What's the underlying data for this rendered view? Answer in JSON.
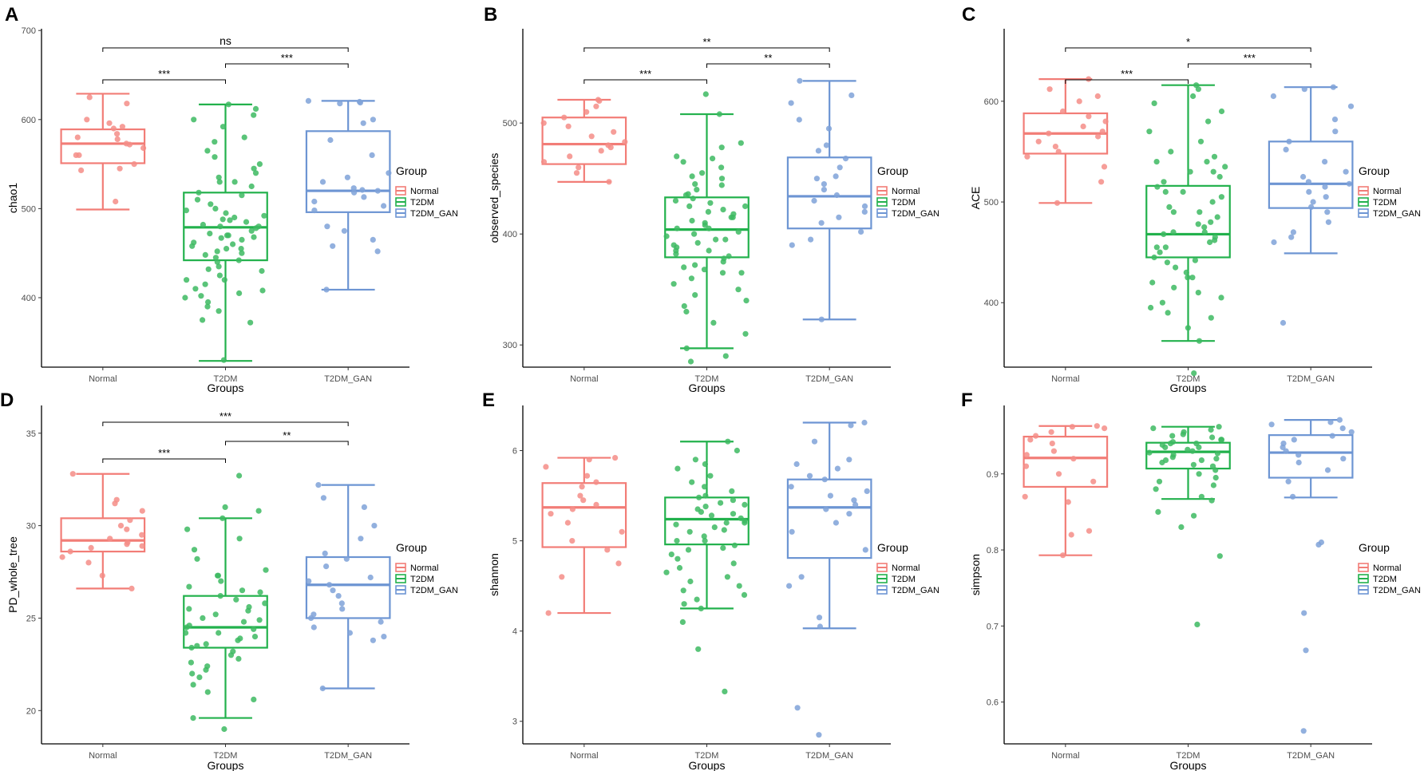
{
  "colors": {
    "Normal": "#F27D77",
    "T2DM": "#22B14C",
    "T2DM_GAN": "#6D95D3"
  },
  "xlabel": "Groups",
  "legend": {
    "title": "Group",
    "items": [
      "Normal",
      "T2DM",
      "T2DM_GAN"
    ]
  },
  "chart_data": [
    {
      "panel": "A",
      "type": "box",
      "ylabel": "chao1",
      "categories": [
        "Normal",
        "T2DM",
        "T2DM_GAN"
      ],
      "ylim": [
        322,
        702
      ],
      "yticks": [
        400,
        500,
        600,
        700
      ],
      "boxes": [
        {
          "group": "Normal",
          "min": 499,
          "q1": 551,
          "median": 573,
          "q3": 589,
          "max": 629
        },
        {
          "group": "T2DM",
          "min": 329,
          "q1": 442,
          "median": 479,
          "q3": 518,
          "max": 617
        },
        {
          "group": "T2DM_GAN",
          "min": 409,
          "q1": 496,
          "median": 520,
          "q3": 587,
          "max": 621
        }
      ],
      "points": [
        [
          508,
          600,
          590,
          568,
          578,
          584,
          560,
          550,
          545,
          572,
          592,
          625,
          618,
          580,
          596,
          543,
          560,
          573
        ],
        [
          612,
          605,
          600,
          592,
          580,
          575,
          565,
          558,
          550,
          540,
          535,
          530,
          525,
          518,
          510,
          505,
          500,
          495,
          492,
          488,
          485,
          482,
          480,
          478,
          475,
          472,
          470,
          468,
          465,
          462,
          460,
          458,
          455,
          452,
          450,
          448,
          445,
          440,
          435,
          430,
          425,
          420,
          415,
          410,
          405,
          400,
          395,
          390,
          385,
          375,
          372,
          330,
          617,
          545,
          530,
          515,
          498,
          487,
          467,
          455,
          442,
          432,
          420,
          408,
          402,
          470,
          480,
          490
        ],
        [
          621,
          620,
          619,
          618,
          600,
          596,
          577,
          560,
          540,
          535,
          530,
          523,
          521,
          520,
          518,
          513,
          508,
          503,
          498,
          480,
          475,
          465,
          458,
          452,
          409
        ]
      ],
      "brackets": [
        {
          "from": 0,
          "to": 2,
          "label": "ns",
          "level": 2
        },
        {
          "from": 0,
          "to": 1,
          "label": "***",
          "level": 0
        },
        {
          "from": 1,
          "to": 2,
          "label": "***",
          "level": 1
        }
      ]
    },
    {
      "panel": "B",
      "type": "box",
      "ylabel": "observed_species",
      "categories": [
        "Normal",
        "T2DM",
        "T2DM_GAN"
      ],
      "ylim": [
        280,
        585
      ],
      "yticks": [
        300,
        400,
        500
      ],
      "boxes": [
        {
          "group": "Normal",
          "min": 447,
          "q1": 463,
          "median": 481,
          "q3": 505,
          "max": 521
        },
        {
          "group": "T2DM",
          "min": 297,
          "q1": 379,
          "median": 404,
          "q3": 433,
          "max": 508
        },
        {
          "group": "T2DM_GAN",
          "min": 323,
          "q1": 405,
          "median": 434,
          "q3": 469,
          "max": 538
        }
      ],
      "points": [
        [
          447,
          455,
          460,
          465,
          470,
          475,
          478,
          480,
          483,
          488,
          492,
          497,
          500,
          505,
          510,
          515,
          520,
          521
        ],
        [
          526,
          508,
          482,
          478,
          470,
          468,
          465,
          460,
          455,
          452,
          450,
          445,
          440,
          435,
          432,
          430,
          428,
          425,
          422,
          420,
          418,
          415,
          412,
          410,
          408,
          405,
          402,
          400,
          398,
          395,
          392,
          390,
          388,
          385,
          382,
          380,
          378,
          375,
          372,
          370,
          368,
          365,
          360,
          355,
          350,
          345,
          340,
          335,
          330,
          320,
          310,
          297,
          290,
          285,
          415,
          425,
          405,
          395,
          385,
          365,
          444,
          436
        ],
        [
          538,
          525,
          518,
          503,
          495,
          480,
          475,
          468,
          460,
          452,
          450,
          445,
          440,
          435,
          430,
          425,
          420,
          415,
          410,
          402,
          395,
          390,
          323
        ]
      ],
      "brackets": [
        {
          "from": 0,
          "to": 2,
          "label": "**",
          "level": 2
        },
        {
          "from": 0,
          "to": 1,
          "label": "***",
          "level": 0
        },
        {
          "from": 1,
          "to": 2,
          "label": "**",
          "level": 1
        }
      ]
    },
    {
      "panel": "C",
      "type": "box",
      "ylabel": "ACE",
      "categories": [
        "Normal",
        "T2DM",
        "T2DM_GAN"
      ],
      "ylim": [
        336,
        672
      ],
      "yticks": [
        400,
        500,
        600
      ],
      "boxes": [
        {
          "group": "Normal",
          "min": 499,
          "q1": 548,
          "median": 568,
          "q3": 588,
          "max": 622
        },
        {
          "group": "T2DM",
          "min": 362,
          "q1": 445,
          "median": 468,
          "q3": 516,
          "max": 616
        },
        {
          "group": "T2DM_GAN",
          "min": 449,
          "q1": 494,
          "median": 518,
          "q3": 560,
          "max": 614
        },
        "..."
      ],
      "points": [
        [
          499,
          520,
          535,
          545,
          550,
          555,
          560,
          565,
          568,
          570,
          575,
          580,
          585,
          590,
          600,
          605,
          612,
          622
        ],
        [
          616,
          612,
          605,
          598,
          590,
          580,
          570,
          560,
          550,
          545,
          540,
          535,
          530,
          525,
          520,
          515,
          510,
          505,
          500,
          495,
          490,
          485,
          480,
          475,
          470,
          468,
          465,
          462,
          460,
          455,
          450,
          445,
          440,
          435,
          430,
          425,
          420,
          415,
          410,
          405,
          400,
          395,
          390,
          385,
          375,
          362,
          330,
          540,
          530,
          510,
          490,
          478,
          470,
          455,
          442,
          425
        ],
        [
          614,
          612,
          605,
          595,
          582,
          570,
          560,
          552,
          540,
          530,
          525,
          520,
          518,
          515,
          510,
          505,
          500,
          495,
          490,
          480,
          470,
          465,
          460,
          380
        ]
      ],
      "brackets": [
        {
          "from": 0,
          "to": 2,
          "label": "*",
          "level": 2
        },
        {
          "from": 0,
          "to": 1,
          "label": "***",
          "level": 0
        },
        {
          "from": 1,
          "to": 2,
          "label": "***",
          "level": 1
        }
      ]
    },
    {
      "panel": "D",
      "type": "box",
      "ylabel": "PD_whole_tree",
      "categories": [
        "Normal",
        "T2DM",
        "T2DM_GAN"
      ],
      "ylim": [
        18.2,
        36.5
      ],
      "yticks": [
        20,
        25,
        30,
        35
      ],
      "boxes": [
        {
          "group": "Normal",
          "min": 26.6,
          "q1": 28.6,
          "median": 29.2,
          "q3": 30.4,
          "max": 32.8
        },
        {
          "group": "T2DM",
          "min": 19.6,
          "q1": 23.4,
          "median": 24.5,
          "q3": 26.2,
          "max": 30.4
        },
        {
          "group": "T2DM_GAN",
          "min": 21.2,
          "q1": 25.0,
          "median": 26.8,
          "q3": 28.3,
          "max": 32.2
        }
      ],
      "points": [
        [
          26.6,
          27.3,
          28.0,
          28.3,
          28.6,
          28.9,
          29.1,
          29.3,
          29.5,
          29.8,
          30.0,
          30.3,
          30.8,
          31.2,
          31.4,
          32.8,
          29.0,
          28.8
        ],
        [
          32.7,
          31.0,
          30.8,
          30.4,
          29.8,
          29.3,
          28.7,
          28.2,
          27.6,
          27.3,
          27.0,
          26.7,
          26.4,
          26.2,
          26.0,
          25.8,
          25.6,
          25.4,
          25.2,
          25.0,
          24.8,
          24.6,
          24.5,
          24.4,
          24.2,
          24.0,
          23.8,
          23.6,
          23.5,
          23.4,
          23.2,
          23.0,
          22.8,
          22.6,
          22.4,
          22.2,
          22.0,
          21.8,
          21.4,
          21.0,
          20.6,
          19.6,
          19.0,
          24.9,
          25.5,
          26.5,
          23.9,
          27.3,
          24.2
        ],
        [
          32.2,
          31.5,
          31.0,
          30.0,
          29.3,
          28.5,
          28.2,
          27.8,
          27.2,
          27.0,
          26.8,
          26.5,
          26.2,
          25.8,
          25.5,
          25.2,
          25.0,
          24.8,
          24.5,
          24.2,
          24.0,
          23.8,
          21.2
        ]
      ],
      "brackets": [
        {
          "from": 0,
          "to": 2,
          "label": "***",
          "level": 2
        },
        {
          "from": 0,
          "to": 1,
          "label": "***",
          "level": 0
        },
        {
          "from": 1,
          "to": 2,
          "label": "**",
          "level": 1
        }
      ]
    },
    {
      "panel": "E",
      "type": "box",
      "ylabel": "shannon",
      "categories": [
        "Normal",
        "T2DM",
        "T2DM_GAN"
      ],
      "ylim": [
        2.75,
        6.5
      ],
      "yticks": [
        3,
        4,
        5,
        6
      ],
      "boxes": [
        {
          "group": "Normal",
          "min": 4.2,
          "q1": 4.93,
          "median": 5.37,
          "q3": 5.64,
          "max": 5.92
        },
        {
          "group": "T2DM",
          "min": 4.25,
          "q1": 4.96,
          "median": 5.24,
          "q3": 5.48,
          "max": 6.1
        },
        {
          "group": "T2DM_GAN",
          "min": 4.03,
          "q1": 4.81,
          "median": 5.37,
          "q3": 5.68,
          "max": 6.31
        }
      ],
      "points": [
        [
          4.2,
          4.6,
          4.75,
          4.9,
          5.0,
          5.1,
          5.2,
          5.3,
          5.35,
          5.4,
          5.45,
          5.5,
          5.6,
          5.65,
          5.72,
          5.82,
          5.9,
          5.92
        ],
        [
          6.1,
          6.0,
          5.9,
          5.85,
          5.8,
          5.72,
          5.65,
          5.6,
          5.55,
          5.5,
          5.48,
          5.45,
          5.4,
          5.38,
          5.35,
          5.32,
          5.3,
          5.28,
          5.25,
          5.22,
          5.2,
          5.18,
          5.15,
          5.12,
          5.1,
          5.05,
          5.0,
          4.95,
          4.9,
          4.85,
          4.8,
          4.75,
          4.7,
          4.65,
          4.6,
          4.55,
          4.5,
          4.45,
          4.4,
          4.35,
          4.3,
          4.25,
          4.1,
          3.8,
          3.33,
          5.0,
          5.2,
          5.42,
          4.92
        ],
        [
          6.31,
          6.28,
          6.1,
          5.9,
          5.85,
          5.8,
          5.72,
          5.68,
          5.6,
          5.55,
          5.5,
          5.45,
          5.4,
          5.35,
          5.3,
          5.2,
          5.1,
          4.9,
          4.6,
          4.5,
          4.15,
          4.05,
          3.15,
          2.85
        ]
      ],
      "brackets": []
    },
    {
      "panel": "F",
      "type": "box",
      "ylabel": "simpson",
      "categories": [
        "Normal",
        "T2DM",
        "T2DM_GAN"
      ],
      "ylim": [
        0.545,
        0.99
      ],
      "yticks": [
        0.6,
        0.7,
        0.8,
        0.9
      ],
      "boxes": [
        {
          "group": "Normal",
          "min": 0.793,
          "q1": 0.883,
          "median": 0.921,
          "q3": 0.949,
          "max": 0.963
        },
        {
          "group": "T2DM",
          "min": 0.867,
          "q1": 0.907,
          "median": 0.929,
          "q3": 0.941,
          "max": 0.962
        },
        {
          "group": "T2DM_GAN",
          "min": 0.869,
          "q1": 0.895,
          "median": 0.928,
          "q3": 0.951,
          "max": 0.971
        }
      ],
      "points": [
        [
          0.793,
          0.82,
          0.825,
          0.863,
          0.87,
          0.89,
          0.91,
          0.92,
          0.925,
          0.93,
          0.94,
          0.945,
          0.95,
          0.955,
          0.96,
          0.962,
          0.963,
          0.9
        ],
        [
          0.962,
          0.96,
          0.958,
          0.955,
          0.952,
          0.95,
          0.948,
          0.945,
          0.942,
          0.94,
          0.938,
          0.935,
          0.932,
          0.93,
          0.928,
          0.925,
          0.922,
          0.92,
          0.918,
          0.915,
          0.912,
          0.91,
          0.905,
          0.9,
          0.895,
          0.89,
          0.885,
          0.88,
          0.87,
          0.865,
          0.85,
          0.845,
          0.83,
          0.792,
          0.702,
          0.935,
          0.927,
          0.94,
          0.945,
          0.918
        ],
        [
          0.971,
          0.968,
          0.965,
          0.96,
          0.955,
          0.95,
          0.945,
          0.94,
          0.935,
          0.93,
          0.925,
          0.92,
          0.915,
          0.905,
          0.89,
          0.87,
          0.81,
          0.807,
          0.717,
          0.668,
          0.562
        ]
      ],
      "brackets": []
    }
  ]
}
